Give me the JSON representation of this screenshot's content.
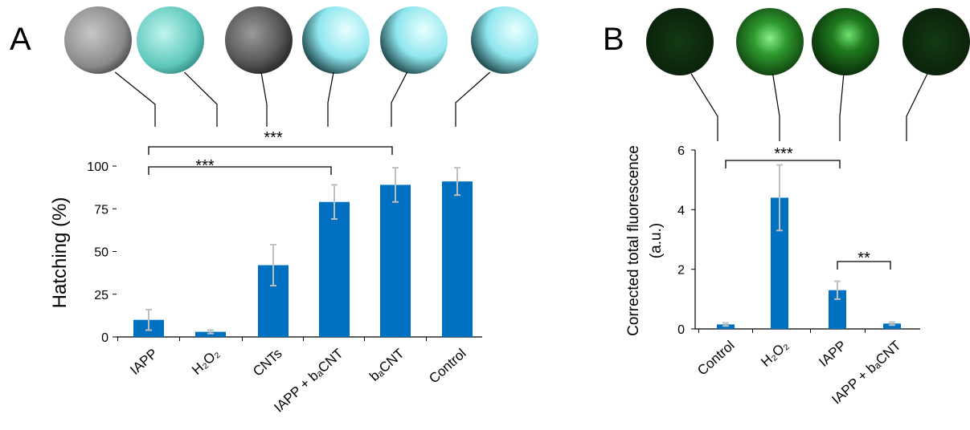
{
  "chart_data": [
    {
      "type": "bar",
      "panel_label": "A",
      "ylabel": "Hatching (%)",
      "categories": [
        "IAPP",
        "H₂O₂",
        "CNTs",
        "IAPP + bₐCNT",
        "bₐCNT",
        "Control"
      ],
      "values": [
        10,
        3,
        42,
        79,
        89,
        91
      ],
      "errors": [
        6,
        1,
        12,
        10,
        10,
        8
      ],
      "color": "#0070c0",
      "error_color": "#bfbfbf",
      "ylim": [
        0,
        100
      ],
      "yticks": [
        0,
        25,
        50,
        75,
        100
      ],
      "annotations": [
        "***",
        "***"
      ]
    },
    {
      "type": "bar",
      "panel_label": "B",
      "ylabel": [
        "Corrected  total fluorescence",
        "(a.u.)"
      ],
      "categories": [
        "Control",
        "H₂O₂",
        "IAPP",
        "IAPP + bₐCNT"
      ],
      "values": [
        0.15,
        4.4,
        1.3,
        0.18
      ],
      "errors": [
        0.05,
        1.1,
        0.3,
        0.05
      ],
      "color": "#0070c0",
      "error_color": "#bfbfbf",
      "ylim": [
        0,
        6
      ],
      "yticks": [
        0,
        2,
        4,
        6
      ],
      "annotations": [
        "***",
        "**"
      ]
    }
  ]
}
